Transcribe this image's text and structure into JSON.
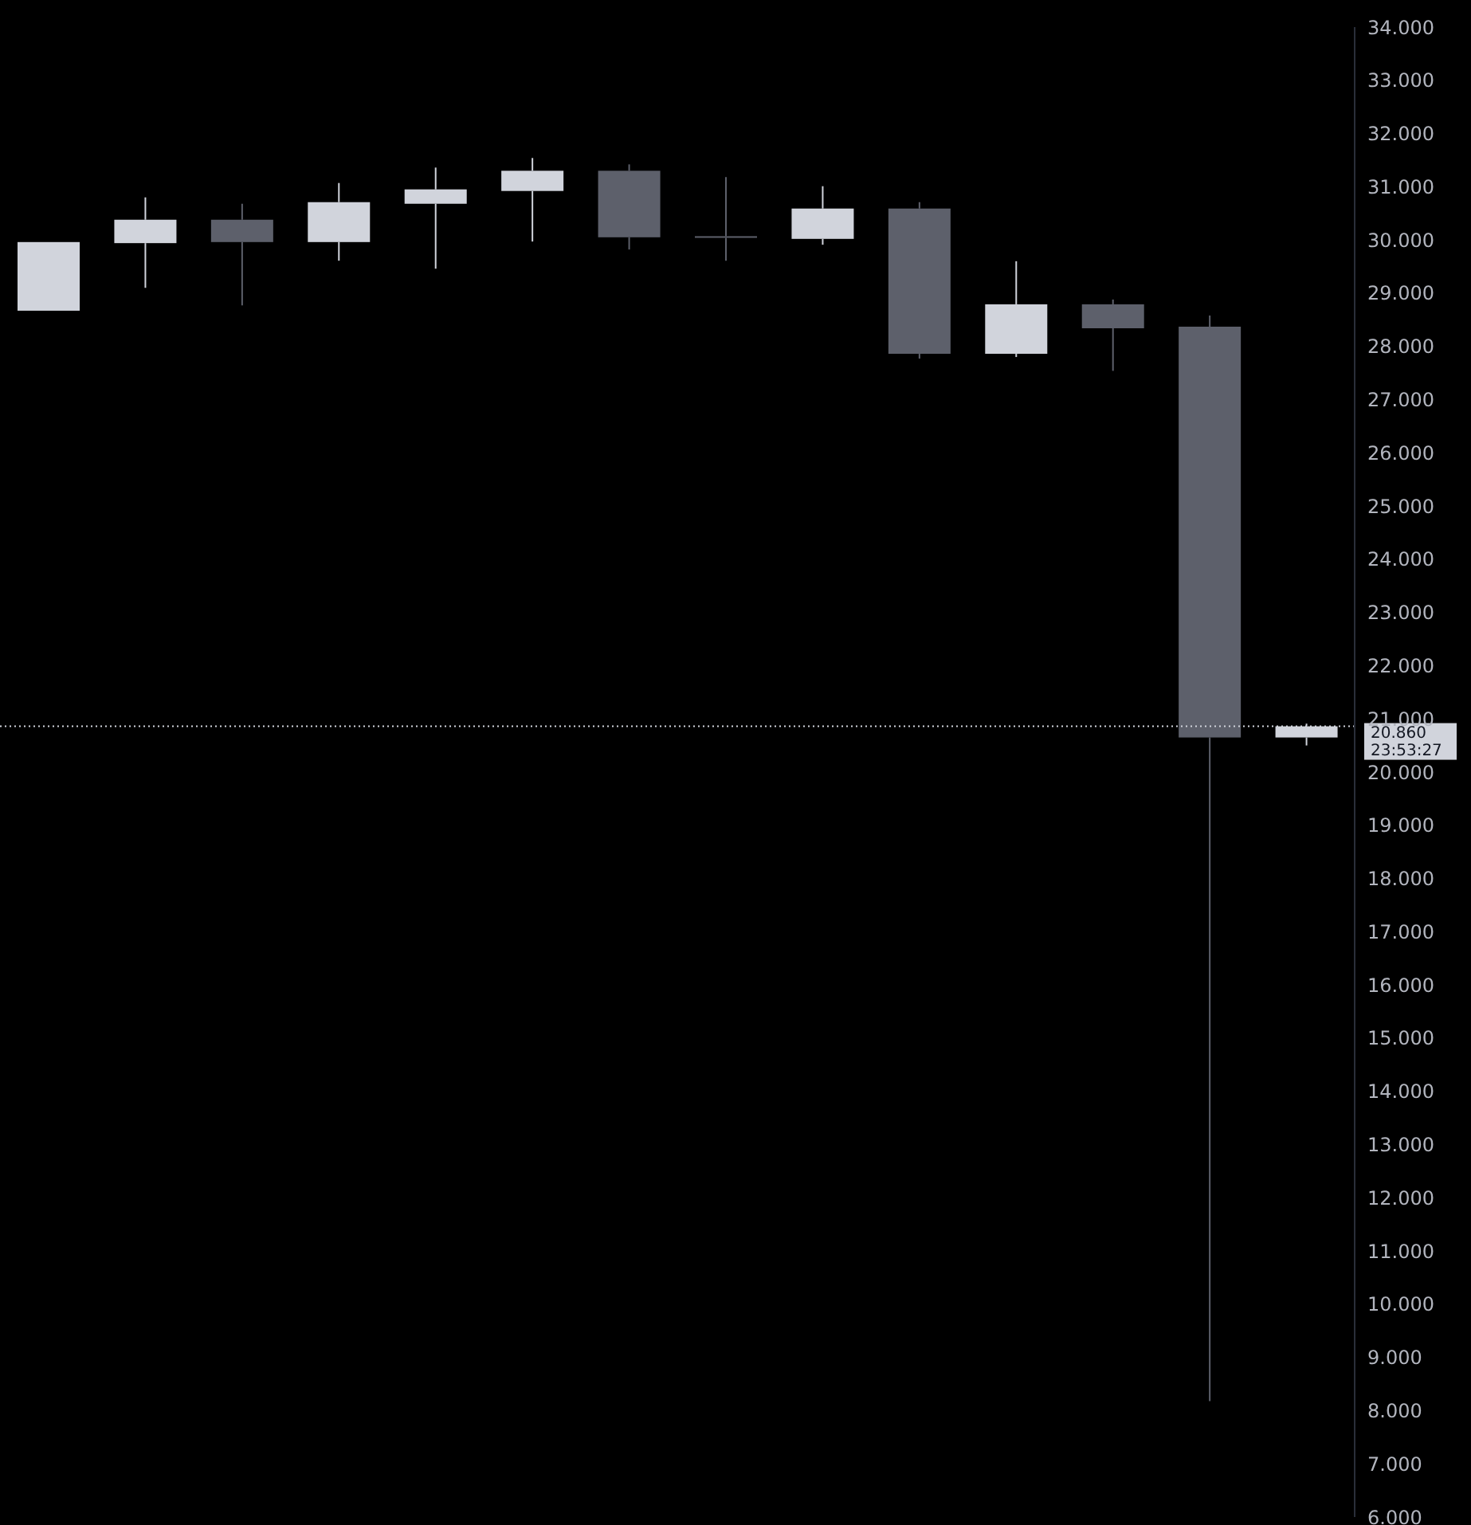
{
  "chart_data": {
    "type": "candlestick",
    "categories": [
      null,
      null,
      null,
      null,
      null,
      null,
      null,
      null,
      null,
      null,
      null,
      null,
      null,
      null
    ],
    "ohlc": [
      [
        28.67,
        29.96,
        28.67,
        29.96
      ],
      [
        29.94,
        30.8,
        29.1,
        30.38
      ],
      [
        30.38,
        30.68,
        28.77,
        29.96
      ],
      [
        29.96,
        31.07,
        29.61,
        30.71
      ],
      [
        30.68,
        31.36,
        29.46,
        30.95
      ],
      [
        30.92,
        31.54,
        29.97,
        31.3
      ],
      [
        31.3,
        31.42,
        29.82,
        30.05
      ],
      [
        30.07,
        31.18,
        29.61,
        30.05
      ],
      [
        30.02,
        31.01,
        29.91,
        30.59
      ],
      [
        30.59,
        30.71,
        27.77,
        27.86
      ],
      [
        27.86,
        29.6,
        27.8,
        28.79
      ],
      [
        28.79,
        28.88,
        27.54,
        28.34
      ],
      [
        28.37,
        28.58,
        8.18,
        20.65
      ],
      [
        20.65,
        20.91,
        20.5,
        20.86
      ]
    ],
    "colors": [
      "#d1d4dc",
      "#d1d4dc",
      "#5d606b",
      "#d1d4dc",
      "#d1d4dc",
      "#d1d4dc",
      "#5d606b",
      "#5d606b",
      "#d1d4dc",
      "#5d606b",
      "#d1d4dc",
      "#5d606b",
      "#5d606b",
      "#d1d4dc"
    ],
    "ylim": [
      6,
      34
    ],
    "yticks": [
      {
        "value": 6,
        "label": "6.000"
      },
      {
        "value": 7,
        "label": "7.000"
      },
      {
        "value": 8,
        "label": "8.000"
      },
      {
        "value": 9,
        "label": "9.000"
      },
      {
        "value": 10,
        "label": "10.000"
      },
      {
        "value": 11,
        "label": "11.000"
      },
      {
        "value": 12,
        "label": "12.000"
      },
      {
        "value": 13,
        "label": "13.000"
      },
      {
        "value": 14,
        "label": "14.000"
      },
      {
        "value": 15,
        "label": "15.000"
      },
      {
        "value": 16,
        "label": "16.000"
      },
      {
        "value": 17,
        "label": "17.000"
      },
      {
        "value": 18,
        "label": "18.000"
      },
      {
        "value": 19,
        "label": "19.000"
      },
      {
        "value": 20,
        "label": "20.000"
      },
      {
        "value": 21,
        "label": "21.000"
      },
      {
        "value": 22,
        "label": "22.000"
      },
      {
        "value": 23,
        "label": "23.000"
      },
      {
        "value": 24,
        "label": "24.000"
      },
      {
        "value": 25,
        "label": "25.000"
      },
      {
        "value": 26,
        "label": "26.000"
      },
      {
        "value": 27,
        "label": "27.000"
      },
      {
        "value": 28,
        "label": "28.000"
      },
      {
        "value": 29,
        "label": "29.000"
      },
      {
        "value": 30,
        "label": "30.000"
      },
      {
        "value": 31,
        "label": "31.000"
      },
      {
        "value": 32,
        "label": "32.000"
      },
      {
        "value": 33,
        "label": "33.000"
      },
      {
        "value": 34,
        "label": "34.000"
      }
    ],
    "ref_lines": [
      {
        "axis": "y",
        "value": 20.86,
        "label": "20.860",
        "color": "#d1d4dc",
        "line_style": "dotted"
      }
    ],
    "annotations": [
      "23:53:27"
    ],
    "tick_labels": "y",
    "grid": false,
    "legend": false
  }
}
